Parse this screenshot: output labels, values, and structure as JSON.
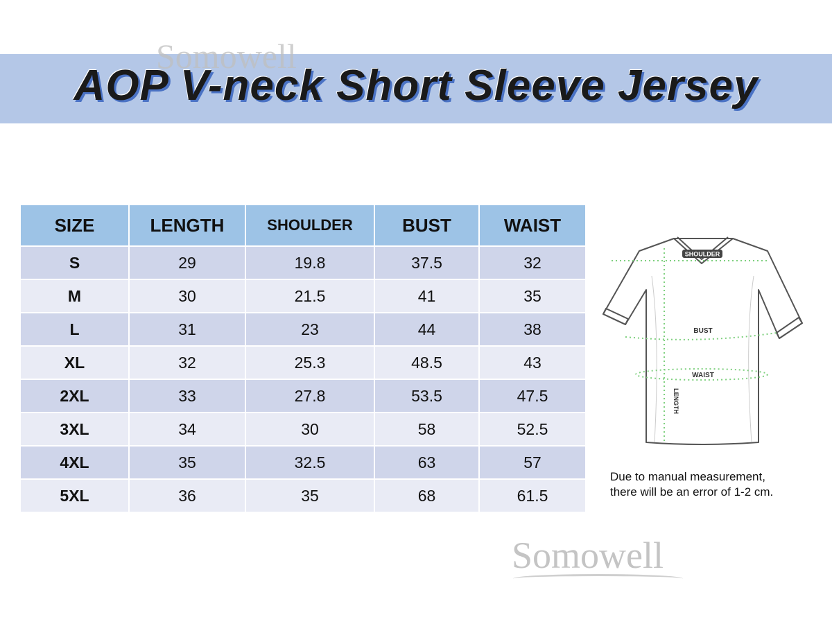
{
  "title": "AOP V-neck Short Sleeve Jersey",
  "watermark": "Somowell",
  "colors": {
    "title_band": "#b4c7e7",
    "header": "#9dc3e6",
    "row_odd": "#cfd5ea",
    "row_even": "#e9ebf5",
    "measure_lines": "#7ed07e"
  },
  "table": {
    "headers": [
      "SIZE",
      "LENGTH",
      "SHOULDER",
      "BUST",
      "WAIST"
    ],
    "rows": [
      [
        "S",
        "29",
        "19.8",
        "37.5",
        "32"
      ],
      [
        "M",
        "30",
        "21.5",
        "41",
        "35"
      ],
      [
        "L",
        "31",
        "23",
        "44",
        "38"
      ],
      [
        "XL",
        "32",
        "25.3",
        "48.5",
        "43"
      ],
      [
        "2XL",
        "33",
        "27.8",
        "53.5",
        "47.5"
      ],
      [
        "3XL",
        "34",
        "30",
        "58",
        "52.5"
      ],
      [
        "4XL",
        "35",
        "32.5",
        "63",
        "57"
      ],
      [
        "5XL",
        "36",
        "35",
        "68",
        "61.5"
      ]
    ]
  },
  "diagram": {
    "shoulder": "SHOULDER",
    "bust": "BUST",
    "waist": "WAIST",
    "length": "LENGTH"
  },
  "note": [
    "Due to manual  measurement,",
    "there will be an error of 1-2 cm."
  ]
}
